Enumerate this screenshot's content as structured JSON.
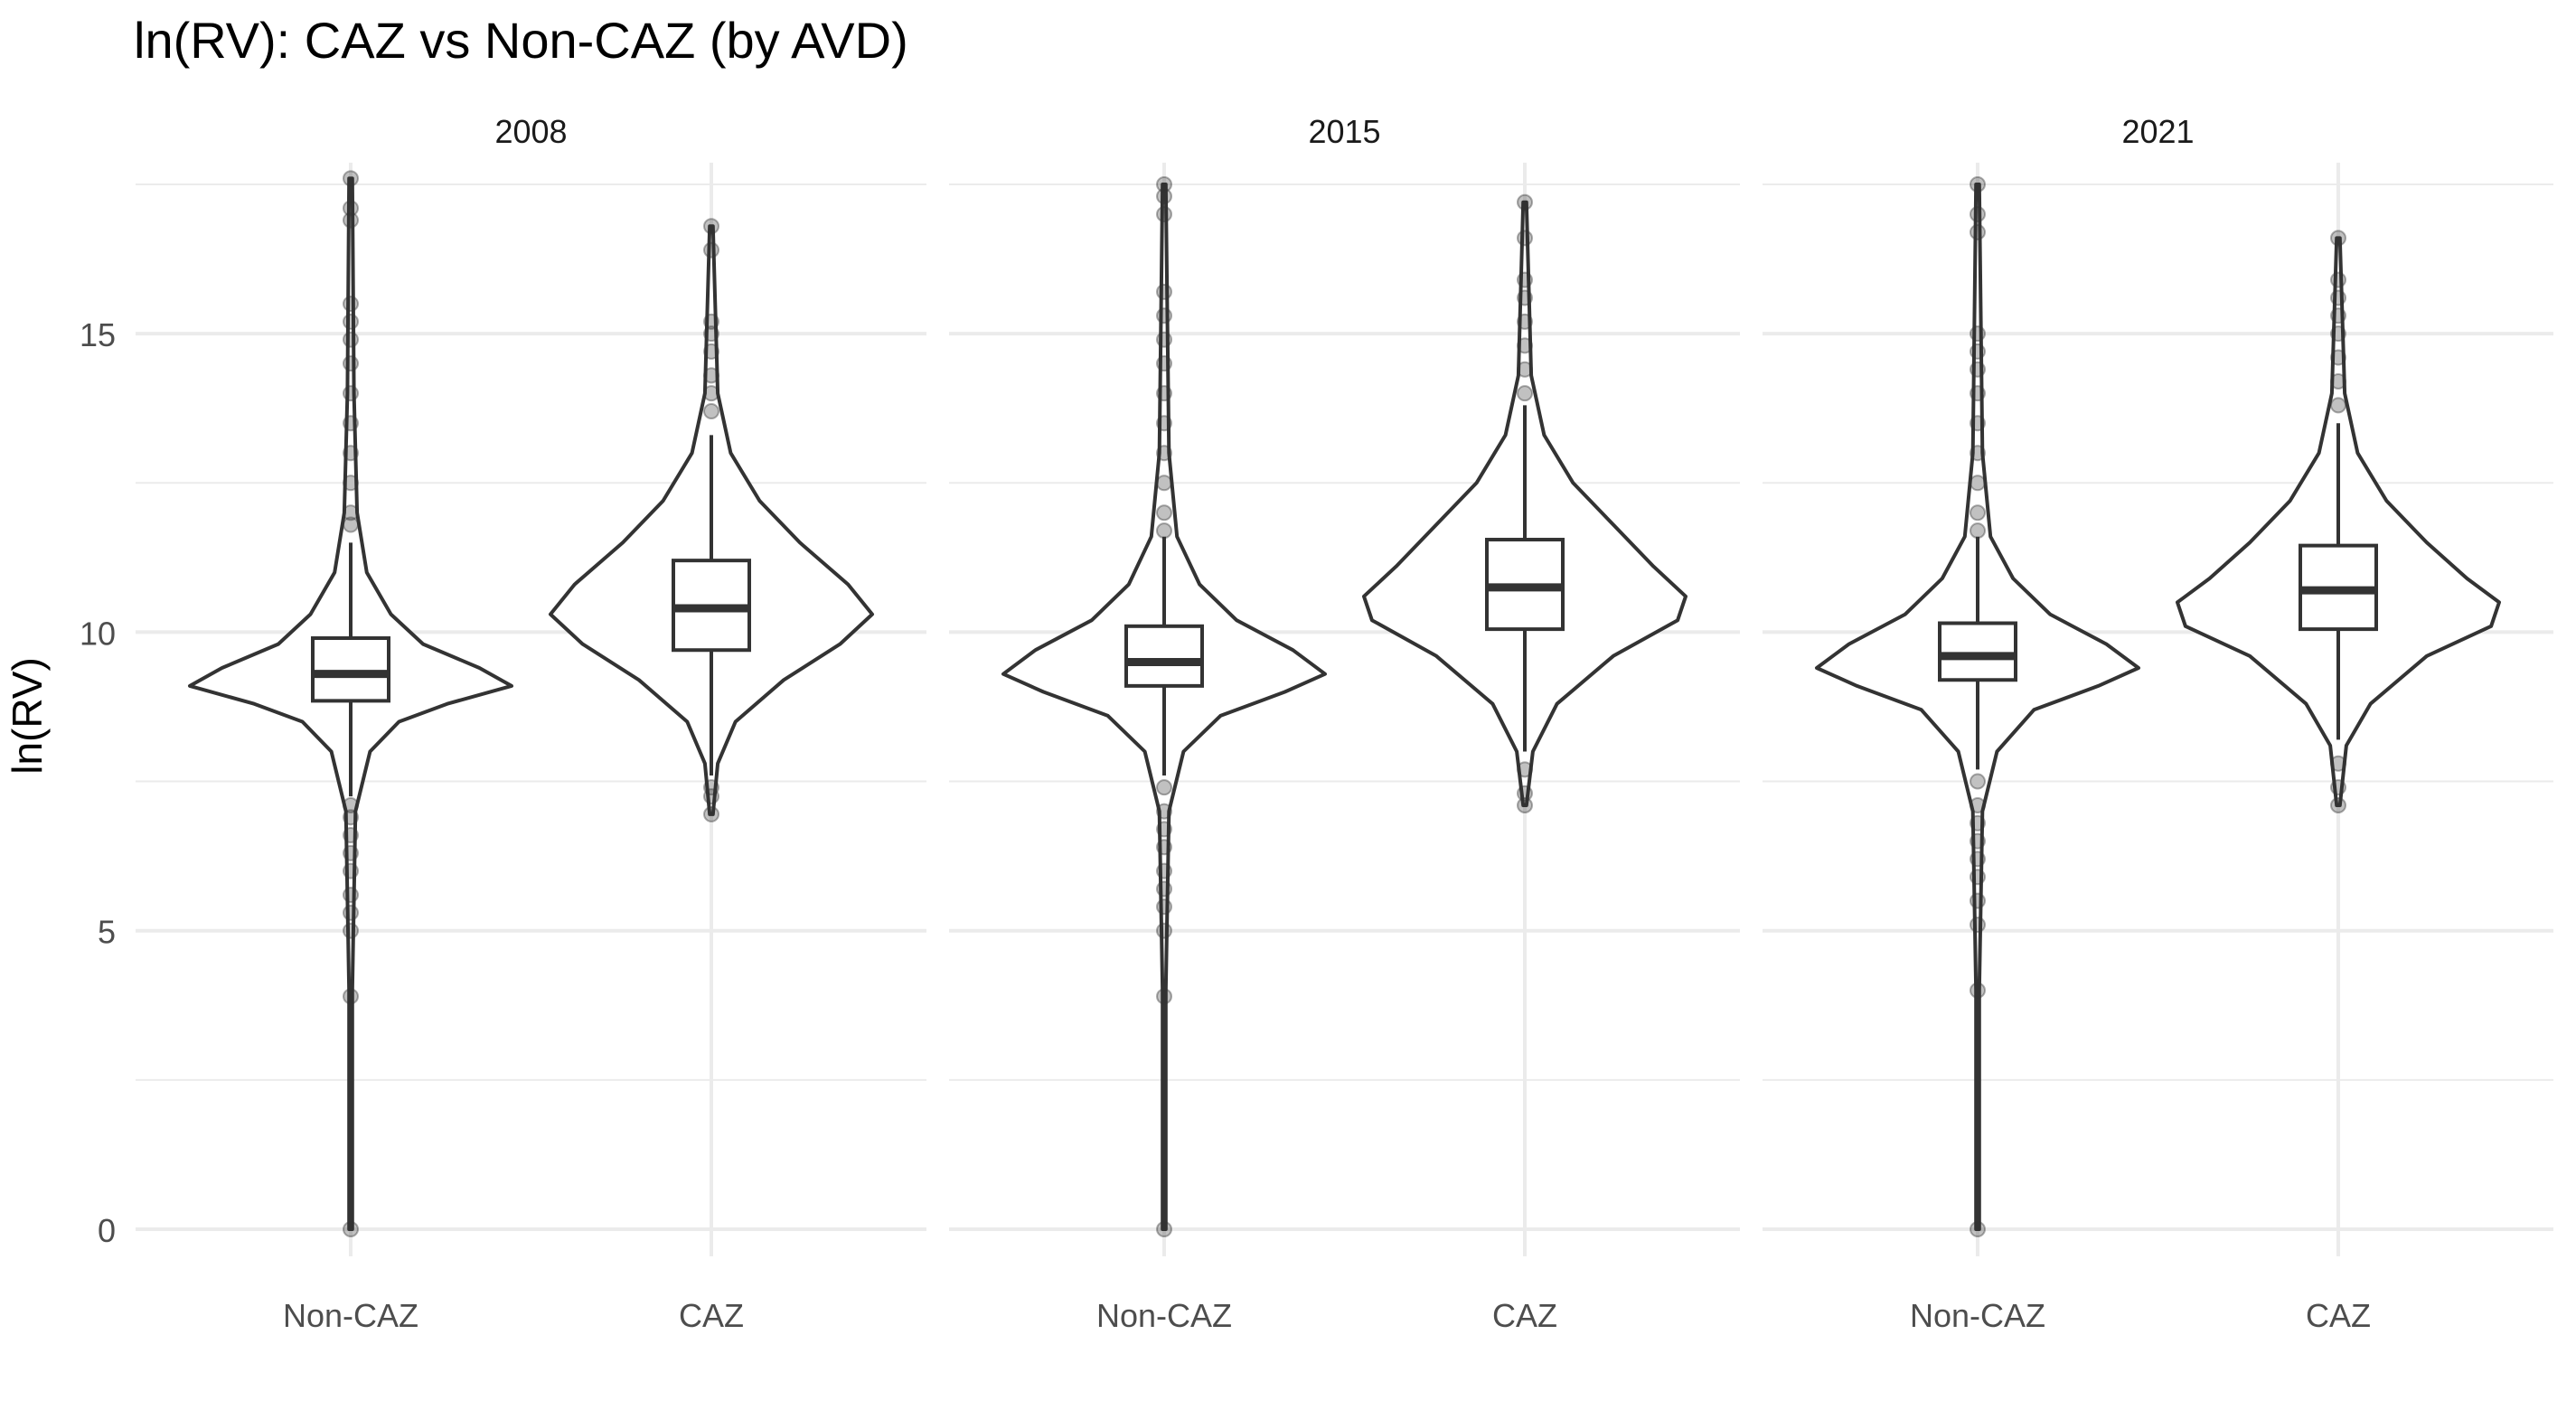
{
  "chart_data": {
    "type": "violin",
    "title": "ln(RV): CAZ vs Non-CAZ (by AVD)",
    "xlabel": "",
    "ylabel": "ln(RV)",
    "ylim": [
      -0.35,
      17.8
    ],
    "yticks": [
      0,
      5,
      10,
      15
    ],
    "grid": true,
    "legend": "none",
    "categories": [
      "Non-CAZ",
      "CAZ"
    ],
    "panels": [
      {
        "facet": "2008",
        "groups": [
          {
            "category": "Non-CAZ",
            "box": {
              "q1": 8.85,
              "median": 9.3,
              "q3": 9.9,
              "whisker_low": 7.25,
              "whisker_high": 11.5
            },
            "range": [
              0,
              17.6
            ],
            "violin": [
              [
                0,
                0.01
              ],
              [
                4,
                0.01
              ],
              [
                7,
                0.03
              ],
              [
                8,
                0.12
              ],
              [
                8.5,
                0.3
              ],
              [
                8.8,
                0.6
              ],
              [
                9.1,
                1.0
              ],
              [
                9.4,
                0.8
              ],
              [
                9.8,
                0.45
              ],
              [
                10.3,
                0.25
              ],
              [
                11,
                0.1
              ],
              [
                12,
                0.04
              ],
              [
                14,
                0.02
              ],
              [
                17.6,
                0.01
              ]
            ],
            "outliers": [
              17.6,
              17.1,
              16.9,
              15.5,
              15.2,
              14.9,
              14.5,
              14.0,
              13.5,
              13.0,
              12.5,
              12.0,
              11.8,
              7.1,
              6.9,
              6.6,
              6.3,
              6.0,
              5.6,
              5.3,
              5.0,
              3.9,
              0
            ]
          },
          {
            "category": "CAZ",
            "box": {
              "q1": 9.7,
              "median": 10.4,
              "q3": 11.2,
              "whisker_low": 7.6,
              "whisker_high": 13.3
            },
            "range": [
              6.95,
              16.8
            ],
            "violin": [
              [
                6.95,
                0.01
              ],
              [
                7.8,
                0.04
              ],
              [
                8.5,
                0.15
              ],
              [
                9.2,
                0.45
              ],
              [
                9.8,
                0.8
              ],
              [
                10.3,
                1.0
              ],
              [
                10.8,
                0.85
              ],
              [
                11.5,
                0.55
              ],
              [
                12.2,
                0.3
              ],
              [
                13,
                0.12
              ],
              [
                14,
                0.04
              ],
              [
                16.8,
                0.01
              ]
            ],
            "outliers": [
              16.8,
              16.4,
              15.2,
              15.0,
              14.7,
              14.3,
              14.0,
              13.7,
              7.4,
              7.25,
              6.95
            ]
          }
        ]
      },
      {
        "facet": "2015",
        "groups": [
          {
            "category": "Non-CAZ",
            "box": {
              "q1": 9.1,
              "median": 9.5,
              "q3": 10.1,
              "whisker_low": 7.6,
              "whisker_high": 11.6
            },
            "range": [
              0,
              17.5
            ],
            "violin": [
              [
                0,
                0.01
              ],
              [
                4,
                0.01
              ],
              [
                7,
                0.03
              ],
              [
                8,
                0.12
              ],
              [
                8.6,
                0.35
              ],
              [
                9.0,
                0.75
              ],
              [
                9.3,
                1.0
              ],
              [
                9.7,
                0.8
              ],
              [
                10.2,
                0.45
              ],
              [
                10.8,
                0.22
              ],
              [
                11.6,
                0.08
              ],
              [
                13,
                0.03
              ],
              [
                17.5,
                0.01
              ]
            ],
            "outliers": [
              17.5,
              17.3,
              17.0,
              15.7,
              15.3,
              14.9,
              14.5,
              14.0,
              13.5,
              13.0,
              12.5,
              12.0,
              11.7,
              7.4,
              7.0,
              6.7,
              6.4,
              6.0,
              5.7,
              5.4,
              5.0,
              3.9,
              0
            ]
          },
          {
            "category": "CAZ",
            "box": {
              "q1": 10.05,
              "median": 10.75,
              "q3": 11.55,
              "whisker_low": 8.0,
              "whisker_high": 13.8
            },
            "range": [
              7.1,
              17.2
            ],
            "violin": [
              [
                7.1,
                0.01
              ],
              [
                8.0,
                0.05
              ],
              [
                8.8,
                0.2
              ],
              [
                9.6,
                0.55
              ],
              [
                10.2,
                0.95
              ],
              [
                10.6,
                1.0
              ],
              [
                11.1,
                0.8
              ],
              [
                11.8,
                0.55
              ],
              [
                12.5,
                0.3
              ],
              [
                13.3,
                0.12
              ],
              [
                14.3,
                0.04
              ],
              [
                17.2,
                0.01
              ]
            ],
            "outliers": [
              17.2,
              16.6,
              15.9,
              15.6,
              15.2,
              14.8,
              14.4,
              14.0,
              7.7,
              7.3,
              7.1
            ]
          }
        ]
      },
      {
        "facet": "2021",
        "groups": [
          {
            "category": "Non-CAZ",
            "box": {
              "q1": 9.2,
              "median": 9.6,
              "q3": 10.15,
              "whisker_low": 7.7,
              "whisker_high": 11.6
            },
            "range": [
              0,
              17.5
            ],
            "violin": [
              [
                0,
                0.01
              ],
              [
                4,
                0.01
              ],
              [
                7,
                0.03
              ],
              [
                8,
                0.12
              ],
              [
                8.7,
                0.35
              ],
              [
                9.1,
                0.75
              ],
              [
                9.4,
                1.0
              ],
              [
                9.8,
                0.8
              ],
              [
                10.3,
                0.45
              ],
              [
                10.9,
                0.22
              ],
              [
                11.6,
                0.08
              ],
              [
                13,
                0.03
              ],
              [
                17.5,
                0.01
              ]
            ],
            "outliers": [
              17.5,
              17.0,
              16.7,
              15.0,
              14.7,
              14.4,
              14.0,
              13.5,
              13.0,
              12.5,
              12.0,
              11.7,
              7.5,
              7.1,
              6.8,
              6.5,
              6.2,
              5.9,
              5.5,
              5.1,
              4.0,
              0
            ]
          },
          {
            "category": "CAZ",
            "box": {
              "q1": 10.05,
              "median": 10.7,
              "q3": 11.45,
              "whisker_low": 8.2,
              "whisker_high": 13.5
            },
            "range": [
              7.1,
              16.6
            ],
            "violin": [
              [
                7.1,
                0.01
              ],
              [
                8.1,
                0.05
              ],
              [
                8.8,
                0.2
              ],
              [
                9.6,
                0.55
              ],
              [
                10.1,
                0.95
              ],
              [
                10.5,
                1.0
              ],
              [
                10.9,
                0.8
              ],
              [
                11.5,
                0.55
              ],
              [
                12.2,
                0.3
              ],
              [
                13.0,
                0.12
              ],
              [
                14.0,
                0.04
              ],
              [
                16.6,
                0.01
              ]
            ],
            "outliers": [
              16.6,
              15.9,
              15.6,
              15.3,
              15.0,
              14.6,
              14.2,
              13.8,
              7.8,
              7.4,
              7.1
            ]
          }
        ]
      }
    ]
  }
}
